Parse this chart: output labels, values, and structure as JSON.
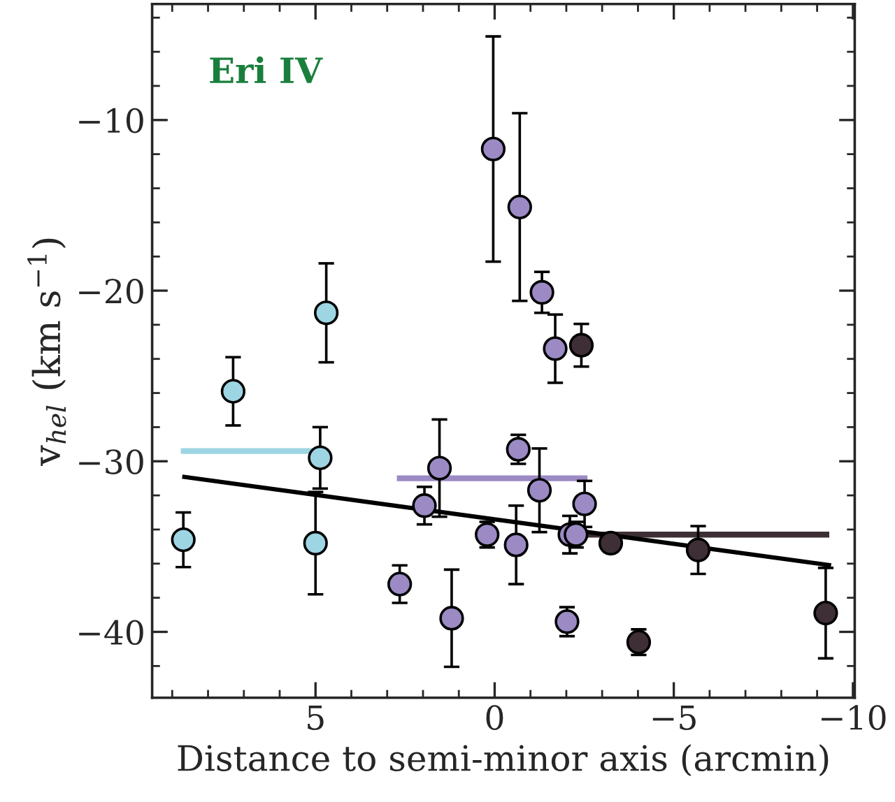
{
  "chart_data": {
    "type": "scatter",
    "xlabel": "Distance to semi-minor axis (arcmin)",
    "ylabel": "v$_{hel}$ (km s$^{−1}$)",
    "annotations": [
      "Eri IV"
    ],
    "xlim": [
      9.56,
      -10.05
    ],
    "ylim": [
      -43.86,
      -3.2
    ],
    "xticks": [
      5,
      0,
      {
        "value": -5,
        "label": "−5"
      },
      {
        "value": -10,
        "label": "−10"
      }
    ],
    "yticks": [
      {
        "value": -10,
        "label": "−10"
      },
      {
        "value": -20,
        "label": "−20"
      },
      {
        "value": -30,
        "label": "−30"
      },
      {
        "value": -40,
        "label": "−40"
      }
    ],
    "grid": false,
    "legend": false,
    "marker": "circle",
    "series": [
      {
        "type": "line",
        "marker": "none",
        "color": "#9dd5e3",
        "x": [
          8.76,
          4.63
        ],
        "values": [
          -29.4,
          -29.4
        ]
      },
      {
        "type": "line",
        "marker": "none",
        "color": "#9b8ac4",
        "x": [
          2.73,
          -2.59
        ],
        "values": [
          -31.0,
          -31.0
        ]
      },
      {
        "type": "line",
        "marker": "none",
        "color": "#3e2e35",
        "x": [
          -2.53,
          -9.34
        ],
        "values": [
          -34.3,
          -34.3
        ]
      },
      {
        "type": "line",
        "marker": "none",
        "color": "#000000",
        "x": [
          8.72,
          -9.39
        ],
        "values": [
          -30.9,
          -36.1
        ]
      },
      {
        "color": "#9dd5e3",
        "x": [
          8.69,
          7.3,
          4.87,
          5.0,
          4.7
        ],
        "values": [
          -34.6,
          -25.9,
          -29.8,
          -34.8,
          -21.3
        ],
        "errors": [
          1.6,
          2.0,
          1.8,
          3.0,
          2.9
        ]
      },
      {
        "color": "#9b8ac4",
        "x": [
          0.04,
          -0.7,
          -1.32,
          -1.69,
          1.54,
          1.96,
          2.65,
          1.2,
          0.21,
          -0.6,
          -0.66,
          -1.25,
          -2.51,
          -2.1,
          -2.27,
          -2.02
        ],
        "values": [
          -11.7,
          -15.1,
          -20.1,
          -23.4,
          -30.4,
          -32.6,
          -37.2,
          -39.2,
          -34.3,
          -34.9,
          -29.3,
          -31.7,
          -32.5,
          -34.3,
          -34.3,
          -39.4
        ],
        "errors": [
          6.6,
          5.5,
          1.2,
          2.0,
          2.85,
          1.1,
          1.1,
          2.85,
          0.75,
          2.3,
          0.85,
          2.45,
          1.35,
          1.1,
          0.75,
          0.85
        ]
      },
      {
        "color": "#3e2e35",
        "x": [
          -2.42,
          -3.24,
          -4.02,
          -5.68,
          -9.24
        ],
        "values": [
          -23.2,
          -34.8,
          -40.6,
          -35.2,
          -38.9
        ],
        "errors": [
          1.25,
          0.5,
          0.75,
          1.4,
          2.65
        ]
      }
    ]
  }
}
